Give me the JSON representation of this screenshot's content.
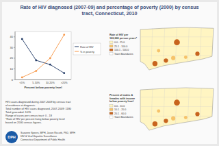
{
  "chart_data": {
    "type": "line",
    "title": "Rate of HIV diagnosed (2007-09) and percentage of poverty (2000) by census tract, Connecticut, 2010",
    "x_label": "Percent below poverty level",
    "categories": [
      "<5%",
      "5-10%",
      "10-20%",
      ">20%"
    ],
    "series": [
      {
        "name": "Rate of HIV",
        "color": "#1f3864",
        "marker": "circle",
        "values": [
          38,
          18,
          14,
          6
        ]
      },
      {
        "name": "% in poverty",
        "color": "#f79646",
        "marker": "circle",
        "values": [
          2,
          8,
          20,
          42
        ]
      }
    ],
    "ylim": [
      0,
      45
    ],
    "yticks": [
      0,
      10,
      20,
      30,
      40
    ],
    "grid": false,
    "legend": "right"
  },
  "maps": [
    {
      "legend_title": "Rate of HIV per 100,000 person years*",
      "legend": [
        {
          "label": "0.0 - 25.0",
          "color": "#fff5c2"
        },
        {
          "label": "25.1 - 100.0",
          "color": "#f6c36a"
        },
        {
          "label": "100.1 - 500.0",
          "color": "#c8641e"
        },
        {
          "label": "Town Boundaries",
          "color": "#ffffff"
        }
      ]
    },
    {
      "legend_title": "Percent of males & females with income below poverty level",
      "legend": [
        {
          "label": "0.0 - 10.0",
          "color": "#fff5c2"
        },
        {
          "label": "10.1 - 20.0",
          "color": "#f6c36a"
        },
        {
          "label": "20.1 - 60.0",
          "color": "#c8641e"
        },
        {
          "label": "Town Boundaries",
          "color": "#ffffff"
        }
      ]
    }
  ],
  "notes": [
    "HIV cases diagnosed during 2007-2009 by census tract",
    "of residence at diagnosis.",
    "Total number of HIV cases diagnosed, 2007-2009: 1180",
    "Total geocoded: 1015",
    "Range of cases per census tract: 0 - 18",
    "*Rate of HIV per percent living below poverty level",
    "based on 2000 census figures."
  ],
  "logo": "DPH",
  "footer": [
    "Suzanne Speers, MPH, Jason Riccotti, PhD, MPH",
    "HIV & Viral Hepatitis Surveillance",
    "Connecticut Department of Public Health"
  ]
}
